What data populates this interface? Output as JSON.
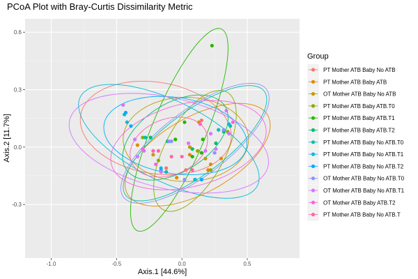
{
  "chart_data": {
    "type": "scatter",
    "title": "PCoA Plot with Bray-Curtis Dissimilarity Metric",
    "xlabel": "Axis.1   [44.6%]",
    "ylabel": "Axis.2   [11.7%]",
    "xlim": [
      -1.2,
      0.9
    ],
    "ylim": [
      -0.58,
      0.67
    ],
    "x_ticks": [
      -1.0,
      -0.5,
      0.0,
      0.5
    ],
    "x_tick_labels": [
      "-1.0",
      "-0.5",
      "0.0",
      "0.5"
    ],
    "y_ticks": [
      -0.3,
      0.0,
      0.3,
      0.6
    ],
    "y_tick_labels": [
      "-0.3",
      "0.0",
      "0.3",
      "0.6"
    ],
    "grid": true,
    "legend": {
      "title": "Group",
      "position": "right"
    },
    "series": [
      {
        "name": "PT Mother ATB Baby No ATB",
        "color": "#F8766D",
        "points": [
          [
            -0.12,
            -0.11
          ],
          [
            0.15,
            0.14
          ],
          [
            0.03,
            -0.12
          ]
        ],
        "ellipse": {
          "cx": -0.2,
          "cy": 0.1,
          "rx": 0.58,
          "ry": 0.24,
          "angle": -5
        }
      },
      {
        "name": "PT Mother ATB Baby ATB",
        "color": "#E18A00",
        "points": [
          [
            -0.34,
            0.01
          ],
          [
            -0.04,
            -0.16
          ],
          [
            0.13,
            0.13
          ],
          [
            0.22,
            -0.09
          ],
          [
            0.3,
            -0.06
          ],
          [
            0.06,
            -0.04
          ],
          [
            0.2,
            -0.12
          ]
        ],
        "ellipse": {
          "cx": 0.12,
          "cy": -0.04,
          "rx": 0.58,
          "ry": 0.21,
          "angle": 18
        }
      },
      {
        "name": "OT Mother ATB Baby No ATB",
        "color": "#BE9C00",
        "points": [
          [
            0.06,
            0.0
          ],
          [
            0.1,
            -0.17
          ],
          [
            0.18,
            -0.06
          ],
          [
            -0.22,
            -0.04
          ]
        ],
        "ellipse": {
          "cx": 0.03,
          "cy": 0.04,
          "rx": 0.48,
          "ry": 0.22,
          "angle": 0
        }
      },
      {
        "name": "PT Mother ATB Baby ATB.T0",
        "color": "#8CAB00",
        "points": [
          [
            -0.18,
            -0.07
          ],
          [
            0.12,
            -0.02
          ],
          [
            0.22,
            -0.12
          ],
          [
            0.35,
            0.08
          ],
          [
            -0.3,
            0.05
          ]
        ],
        "ellipse": {
          "cx": 0.1,
          "cy": -0.02,
          "rx": 0.4,
          "ry": 0.2,
          "angle": 45
        }
      },
      {
        "name": "PT Mother ATB Baby ATB.T1",
        "color": "#24B700",
        "points": [
          [
            0.23,
            0.53
          ],
          [
            0.02,
            0.13
          ],
          [
            0.16,
            0.04
          ],
          [
            0.08,
            -0.05
          ],
          [
            -0.05,
            0.04
          ],
          [
            0.15,
            -0.03
          ]
        ],
        "ellipse": {
          "cx": -0.02,
          "cy": 0.09,
          "rx": 0.62,
          "ry": 0.19,
          "angle": 57
        }
      },
      {
        "name": "PT Mother ATB Baby ATB.T2",
        "color": "#00BE70",
        "points": [
          [
            0.26,
            0.02
          ],
          [
            0.32,
            0.08
          ],
          [
            0.08,
            -0.01
          ],
          [
            -0.24,
            0.05
          ],
          [
            -0.11,
            0.03
          ]
        ],
        "ellipse": {
          "cx": -0.05,
          "cy": 0.05,
          "rx": 0.42,
          "ry": 0.19,
          "angle": 18
        }
      },
      {
        "name": "PT Mother ATB Baby No ATB.T0",
        "color": "#00C1AB",
        "points": [
          [
            0.37,
            0.11
          ],
          [
            0.28,
            0.09
          ],
          [
            -0.28,
            0.05
          ],
          [
            -0.12,
            -0.13
          ]
        ],
        "ellipse": {
          "cx": 0.1,
          "cy": 0.02,
          "rx": 0.6,
          "ry": 0.18,
          "angle": 25
        }
      },
      {
        "name": "PT Mother ATB Baby No ATB.T1",
        "color": "#00BBDA",
        "points": [
          [
            -0.44,
            0.17
          ],
          [
            -0.42,
            0.13
          ],
          [
            0.36,
            0.12
          ],
          [
            0.1,
            -0.17
          ],
          [
            -0.16,
            -0.11
          ]
        ],
        "ellipse": {
          "cx": -0.1,
          "cy": 0.03,
          "rx": 0.72,
          "ry": 0.22,
          "angle": -17
        }
      },
      {
        "name": "PT Mother ATB Baby No ATB.T2",
        "color": "#00ACFC",
        "points": [
          [
            -0.43,
            0.18
          ],
          [
            -0.16,
            -0.12
          ],
          [
            0.15,
            -0.17
          ],
          [
            -0.39,
            0.11
          ]
        ],
        "ellipse": {
          "cx": -0.05,
          "cy": 0.06,
          "rx": 0.55,
          "ry": 0.2,
          "angle": -5
        }
      },
      {
        "name": "OT Mother ATB Baby No ATB.T0",
        "color": "#8B93FF",
        "points": [
          [
            0.32,
            0.09
          ],
          [
            -0.1,
            0.03
          ],
          [
            -0.08,
            0.03
          ],
          [
            0.25,
            -0.03
          ],
          [
            0.02,
            -0.17
          ]
        ],
        "ellipse": {
          "cx": 0.1,
          "cy": 0.02,
          "rx": 0.62,
          "ry": 0.19,
          "angle": 25
        }
      },
      {
        "name": "OT Mother ATB Baby No ATB.T1",
        "color": "#D575FE",
        "points": [
          [
            -0.45,
            0.22
          ],
          [
            0.34,
            0.19
          ],
          [
            -0.36,
            0.04
          ],
          [
            -0.29,
            -0.02
          ],
          [
            -0.16,
            -0.13
          ],
          [
            0.05,
            0.02
          ],
          [
            0.18,
            -0.02
          ],
          [
            0.22,
            0.07
          ],
          [
            0.36,
            0.07
          ],
          [
            -0.34,
            -0.05
          ],
          [
            0.26,
            -0.01
          ]
        ],
        "ellipse": {
          "cx": -0.1,
          "cy": 0.02,
          "rx": 0.77,
          "ry": 0.24,
          "angle": -8
        }
      },
      {
        "name": "OT Mother ATB Baby ATB.T2",
        "color": "#F962DD",
        "points": [
          [
            0.39,
            0.13
          ],
          [
            0.14,
            0.12
          ],
          [
            -0.3,
            -0.01
          ],
          [
            -0.2,
            -0.09
          ]
        ],
        "ellipse": {
          "cx": 0.05,
          "cy": 0.01,
          "rx": 0.6,
          "ry": 0.22,
          "angle": 8
        }
      },
      {
        "name": "PT Mother ATB Baby No ATB.T",
        "color": "#FF65AC",
        "points": [
          [
            -0.22,
            -0.02
          ],
          [
            -0.08,
            -0.05
          ],
          [
            0.08,
            -0.12
          ],
          [
            0.0,
            -0.05
          ],
          [
            -0.18,
            -0.02
          ]
        ],
        "ellipse": {
          "cx": -0.1,
          "cy": 0.0,
          "rx": 0.3,
          "ry": 0.15,
          "angle": 10
        }
      }
    ]
  }
}
